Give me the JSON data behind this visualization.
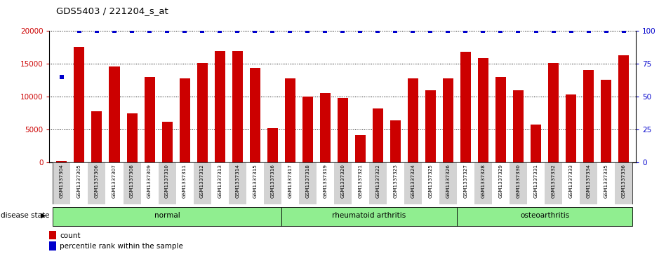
{
  "title": "GDS5403 / 221204_s_at",
  "samples": [
    "GSM1337304",
    "GSM1337305",
    "GSM1337306",
    "GSM1337307",
    "GSM1337308",
    "GSM1337309",
    "GSM1337310",
    "GSM1337311",
    "GSM1337312",
    "GSM1337313",
    "GSM1337314",
    "GSM1337315",
    "GSM1337316",
    "GSM1337317",
    "GSM1337318",
    "GSM1337319",
    "GSM1337320",
    "GSM1337321",
    "GSM1337322",
    "GSM1337323",
    "GSM1337324",
    "GSM1337325",
    "GSM1337326",
    "GSM1337327",
    "GSM1337328",
    "GSM1337329",
    "GSM1337330",
    "GSM1337331",
    "GSM1337332",
    "GSM1337333",
    "GSM1337334",
    "GSM1337335",
    "GSM1337336"
  ],
  "counts": [
    200,
    17500,
    7800,
    14600,
    7400,
    13000,
    6200,
    12700,
    15100,
    16900,
    16900,
    14300,
    5200,
    12800,
    10000,
    10500,
    9800,
    4200,
    8200,
    6400,
    12700,
    11000,
    12700,
    16800,
    15800,
    13000,
    10900,
    5800,
    15100,
    10300,
    14000,
    12500,
    16200
  ],
  "percentile_ranks": [
    65,
    100,
    100,
    100,
    100,
    100,
    100,
    100,
    100,
    100,
    100,
    100,
    100,
    100,
    100,
    100,
    100,
    100,
    100,
    100,
    100,
    100,
    100,
    100,
    100,
    100,
    100,
    100,
    100,
    100,
    100,
    100,
    100
  ],
  "bar_color": "#cc0000",
  "dot_color": "#0000cc",
  "ylim_left": [
    0,
    20000
  ],
  "ylim_right": [
    0,
    100
  ],
  "yticks_left": [
    0,
    5000,
    10000,
    15000,
    20000
  ],
  "yticks_right": [
    0,
    25,
    50,
    75,
    100
  ],
  "groups": [
    {
      "label": "normal",
      "start": 0,
      "end": 13
    },
    {
      "label": "rheumatoid arthritis",
      "start": 13,
      "end": 23
    },
    {
      "label": "osteoarthritis",
      "start": 23,
      "end": 33
    }
  ],
  "group_color": "#90ee90",
  "disease_state_label": "disease state",
  "legend_count_label": "count",
  "legend_percentile_label": "percentile rank within the sample",
  "background_color": "#ffffff",
  "tick_bg_colors": [
    "#d3d3d3",
    "#ffffff"
  ]
}
